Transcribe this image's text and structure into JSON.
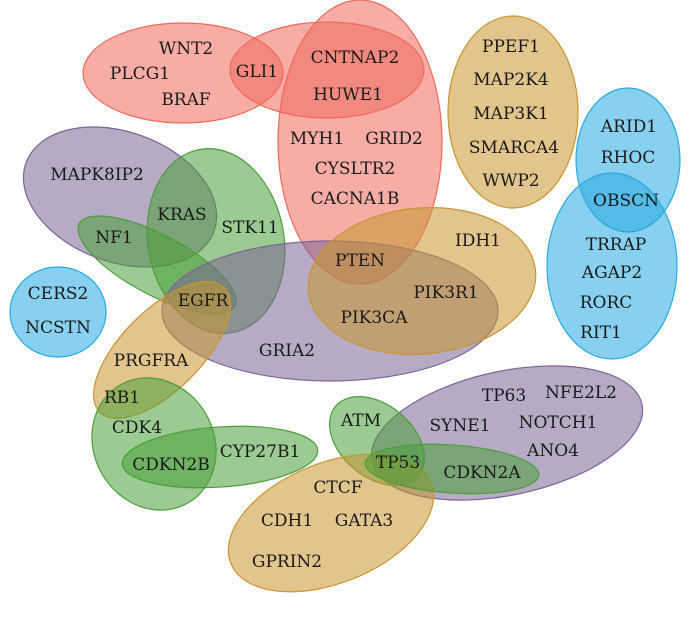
{
  "colors": {
    "red": "#f06a5c",
    "orange": "#c9962f",
    "purple": "#7c6493",
    "green": "#4a9e3b",
    "blue": "#27a9e1"
  },
  "sets": [
    {
      "id": "braf-set",
      "color": "red"
    },
    {
      "id": "cntnap2-set",
      "color": "red"
    },
    {
      "id": "pten-set",
      "color": "red"
    },
    {
      "id": "ppef1-set",
      "color": "orange"
    },
    {
      "id": "arid1-set",
      "color": "blue"
    },
    {
      "id": "rhoc-set",
      "color": "blue"
    },
    {
      "id": "mapk8ip2-set",
      "color": "purple"
    },
    {
      "id": "stk11-set",
      "color": "green"
    },
    {
      "id": "nf1-set",
      "color": "green"
    },
    {
      "id": "gria2-set",
      "color": "purple"
    },
    {
      "id": "idh1-set",
      "color": "orange"
    },
    {
      "id": "cers2-set",
      "color": "blue"
    },
    {
      "id": "prgfra-set",
      "color": "orange"
    },
    {
      "id": "cdk4-set",
      "color": "green"
    },
    {
      "id": "cyp27b1-set",
      "color": "green"
    },
    {
      "id": "tp63-set",
      "color": "purple"
    },
    {
      "id": "atm-set",
      "color": "green"
    },
    {
      "id": "gprin2-set",
      "color": "orange"
    },
    {
      "id": "cdkn2a-set",
      "color": "green"
    }
  ],
  "genes": [
    "WNT2",
    "PLCG1",
    "BRAF",
    "GLI1",
    "CNTNAP2",
    "HUWE1",
    "MYH1",
    "GRID2",
    "CYSLTR2",
    "CACNA1B",
    "PPEF1",
    "MAP2K4",
    "MAP3K1",
    "SMARCA4",
    "WWP2",
    "ARID1",
    "RHOC",
    "OBSCN",
    "TRRAP",
    "AGAP2",
    "RORC",
    "RIT1",
    "MAPK8IP2",
    "KRAS",
    "STK11",
    "NF1",
    "EGFR",
    "PTEN",
    "IDH1",
    "PIK3R1",
    "PIK3CA",
    "GRIA2",
    "CERS2",
    "NCSTN",
    "PRGFRA",
    "RB1",
    "CDK4",
    "CDKN2B",
    "CYP27B1",
    "ATM",
    "TP63",
    "NFE2L2",
    "SYNE1",
    "NOTCH1",
    "ANO4",
    "TP53",
    "CDKN2A",
    "CTCF",
    "CDH1",
    "GATA3",
    "GPRIN2"
  ]
}
